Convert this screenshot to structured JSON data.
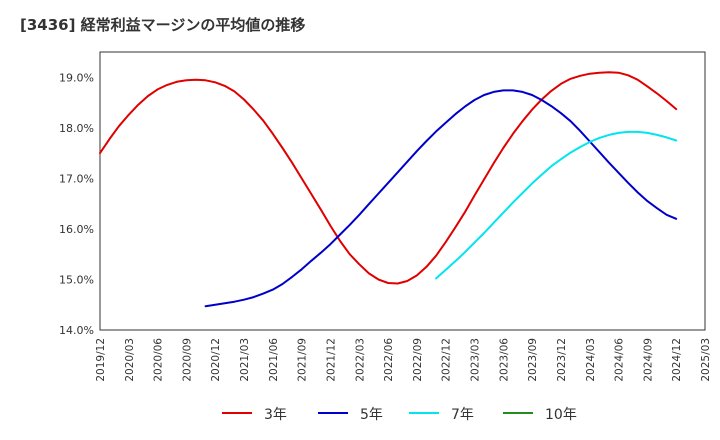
{
  "chart_data": {
    "type": "line",
    "title": "[3436]  経常利益マージンの平均値の推移",
    "xlabel": "",
    "ylabel": "",
    "ylim": [
      14.0,
      19.5
    ],
    "yticks": [
      14.0,
      15.0,
      16.0,
      17.0,
      18.0,
      19.0
    ],
    "ytick_labels": [
      "14.0%",
      "15.0%",
      "16.0%",
      "17.0%",
      "18.0%",
      "19.0%"
    ],
    "x_labels": [
      "2019/12",
      "2020/03",
      "2020/06",
      "2020/09",
      "2020/12",
      "2021/03",
      "2021/06",
      "2021/09",
      "2021/12",
      "2022/03",
      "2022/06",
      "2022/09",
      "2022/12",
      "2023/03",
      "2023/06",
      "2023/09",
      "2023/12",
      "2024/03",
      "2024/06",
      "2024/09",
      "2024/12",
      "2025/03"
    ],
    "grid": true,
    "legend_position": "bottom",
    "series": [
      {
        "name": "3年",
        "color": "#e00000",
        "x": [
          "2019/12",
          "2020/01",
          "2020/02",
          "2020/03",
          "2020/04",
          "2020/05",
          "2020/06",
          "2020/07",
          "2020/08",
          "2020/09",
          "2020/10",
          "2020/11",
          "2020/12",
          "2021/01",
          "2021/02",
          "2021/03",
          "2021/04",
          "2021/05",
          "2021/06",
          "2021/07",
          "2021/08",
          "2021/09",
          "2021/10",
          "2021/11",
          "2021/12",
          "2022/01",
          "2022/02",
          "2022/03",
          "2022/04",
          "2022/05",
          "2022/06",
          "2022/07",
          "2022/08",
          "2022/09",
          "2022/10",
          "2022/11",
          "2022/12",
          "2023/01",
          "2023/02",
          "2023/03",
          "2023/04",
          "2023/05",
          "2023/06",
          "2023/07",
          "2023/08",
          "2023/09",
          "2023/10",
          "2023/11",
          "2023/12",
          "2024/01",
          "2024/02",
          "2024/03",
          "2024/04",
          "2024/05",
          "2024/06",
          "2024/07",
          "2024/08",
          "2024/09",
          "2024/10",
          "2024/11",
          "2024/12"
        ],
        "values": [
          17.5,
          17.78,
          18.04,
          18.26,
          18.46,
          18.63,
          18.76,
          18.85,
          18.91,
          18.94,
          18.95,
          18.94,
          18.9,
          18.83,
          18.72,
          18.56,
          18.36,
          18.14,
          17.88,
          17.6,
          17.31,
          17.0,
          16.69,
          16.38,
          16.06,
          15.76,
          15.5,
          15.3,
          15.12,
          15.0,
          14.93,
          14.92,
          14.97,
          15.08,
          15.25,
          15.47,
          15.74,
          16.03,
          16.33,
          16.66,
          16.98,
          17.3,
          17.6,
          17.88,
          18.13,
          18.36,
          18.56,
          18.73,
          18.87,
          18.97,
          19.03,
          19.07,
          19.09,
          19.1,
          19.09,
          19.04,
          18.95,
          18.82,
          18.68,
          18.53,
          18.37
        ]
      },
      {
        "name": "5年",
        "color": "#0000cc",
        "x": [
          "2020/11",
          "2020/12",
          "2021/01",
          "2021/02",
          "2021/03",
          "2021/04",
          "2021/05",
          "2021/06",
          "2021/07",
          "2021/08",
          "2021/09",
          "2021/10",
          "2021/11",
          "2021/12",
          "2022/01",
          "2022/02",
          "2022/03",
          "2022/04",
          "2022/05",
          "2022/06",
          "2022/07",
          "2022/08",
          "2022/09",
          "2022/10",
          "2022/11",
          "2022/12",
          "2023/01",
          "2023/02",
          "2023/03",
          "2023/04",
          "2023/05",
          "2023/06",
          "2023/07",
          "2023/08",
          "2023/09",
          "2023/10",
          "2023/11",
          "2023/12",
          "2024/01",
          "2024/02",
          "2024/03",
          "2024/04",
          "2024/05",
          "2024/06",
          "2024/07",
          "2024/08",
          "2024/09",
          "2024/10",
          "2024/11",
          "2024/12"
        ],
        "values": [
          14.47,
          14.5,
          14.53,
          14.56,
          14.6,
          14.65,
          14.72,
          14.8,
          14.91,
          15.05,
          15.2,
          15.37,
          15.53,
          15.7,
          15.89,
          16.08,
          16.28,
          16.49,
          16.7,
          16.91,
          17.12,
          17.33,
          17.54,
          17.74,
          17.93,
          18.1,
          18.27,
          18.42,
          18.55,
          18.65,
          18.71,
          18.74,
          18.74,
          18.71,
          18.65,
          18.55,
          18.43,
          18.29,
          18.13,
          17.94,
          17.73,
          17.52,
          17.31,
          17.11,
          16.91,
          16.72,
          16.55,
          16.41,
          16.28,
          16.2
        ]
      },
      {
        "name": "7年",
        "color": "#00e5ee",
        "x": [
          "2022/11",
          "2022/12",
          "2023/01",
          "2023/02",
          "2023/03",
          "2023/04",
          "2023/05",
          "2023/06",
          "2023/07",
          "2023/08",
          "2023/09",
          "2023/10",
          "2023/11",
          "2023/12",
          "2024/01",
          "2024/02",
          "2024/03",
          "2024/04",
          "2024/05",
          "2024/06",
          "2024/07",
          "2024/08",
          "2024/09",
          "2024/10",
          "2024/11",
          "2024/12"
        ],
        "values": [
          15.02,
          15.19,
          15.36,
          15.54,
          15.73,
          15.92,
          16.12,
          16.32,
          16.52,
          16.71,
          16.9,
          17.07,
          17.24,
          17.38,
          17.51,
          17.62,
          17.72,
          17.8,
          17.86,
          17.9,
          17.92,
          17.92,
          17.9,
          17.86,
          17.81,
          17.75
        ]
      },
      {
        "name": "10年",
        "color": "#228b22",
        "x": [],
        "values": []
      }
    ]
  }
}
